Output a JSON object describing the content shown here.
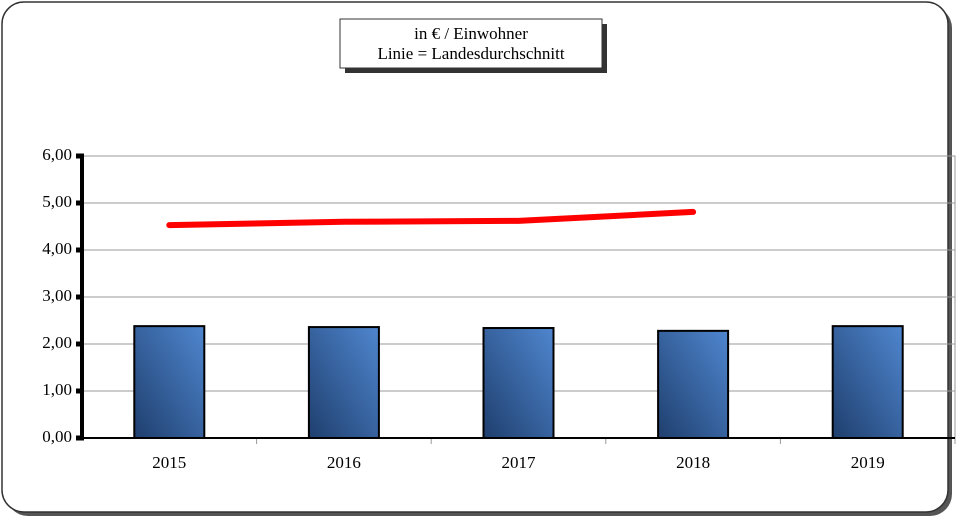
{
  "chart_data": {
    "type": "bar",
    "title": [
      "in € / Einwohner",
      "Linie = Landesdurchschnitt"
    ],
    "categories": [
      "2015",
      "2016",
      "2017",
      "2018",
      "2019"
    ],
    "series": [
      {
        "kind": "bar",
        "color": "#3d6fb3",
        "values": [
          2.38,
          2.36,
          2.34,
          2.28,
          2.38
        ]
      },
      {
        "kind": "line",
        "color": "#ff0000",
        "values": [
          4.53,
          4.6,
          4.62,
          4.81,
          null
        ]
      }
    ],
    "ylim": [
      0,
      6
    ],
    "yticks": [
      {
        "value": 0,
        "label": "0,00"
      },
      {
        "value": 1,
        "label": "1,00"
      },
      {
        "value": 2,
        "label": "2,00"
      },
      {
        "value": 3,
        "label": "3,00"
      },
      {
        "value": 4,
        "label": "4,00"
      },
      {
        "value": 5,
        "label": "5,00"
      },
      {
        "value": 6,
        "label": "6,00"
      }
    ],
    "grid": true
  }
}
